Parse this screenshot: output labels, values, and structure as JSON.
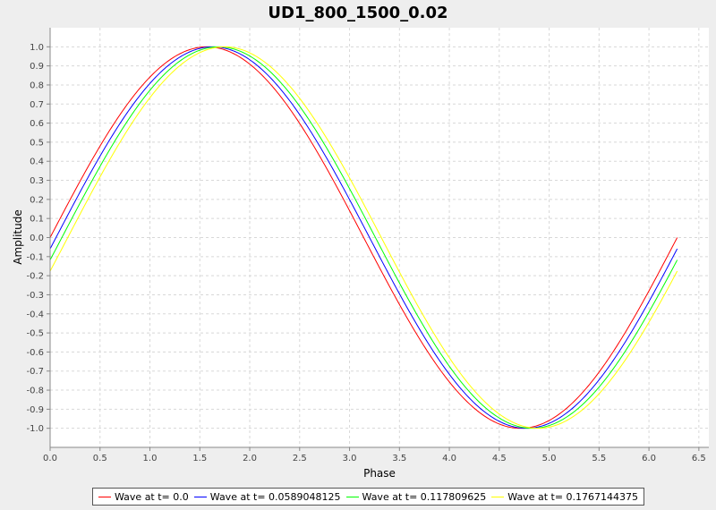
{
  "chart_data": {
    "type": "line",
    "title": "UD1_800_1500_0.02",
    "xlabel": "Phase",
    "ylabel": "Amplitude",
    "xlim": [
      0,
      6.6
    ],
    "ylim": [
      -1.1,
      1.1
    ],
    "x_ticks": [
      "0.0",
      "0.5",
      "1.0",
      "1.5",
      "2.0",
      "2.5",
      "3.0",
      "3.5",
      "4.0",
      "4.5",
      "5.0",
      "5.5",
      "6.0",
      "6.5"
    ],
    "y_ticks": [
      "1.0",
      "0.9",
      "0.8",
      "0.7",
      "0.6",
      "0.5",
      "0.4",
      "0.3",
      "0.2",
      "0.1",
      "0.0",
      "-0.1",
      "-0.2",
      "-0.3",
      "-0.4",
      "-0.5",
      "-0.6",
      "-0.7",
      "-0.8",
      "-0.9",
      "-1.0"
    ],
    "grid": true,
    "legend_position": "bottom",
    "x_range": [
      0,
      6.2832
    ],
    "function": "sin(x - offset)",
    "series": [
      {
        "name": "Wave at t= 0.0",
        "color": "#ff0000",
        "offset": 0.0
      },
      {
        "name": "Wave at t= 0.0589048125",
        "color": "#0000ff",
        "offset": 0.0589048125
      },
      {
        "name": "Wave at t= 0.117809625",
        "color": "#00ff00",
        "offset": 0.117809625
      },
      {
        "name": "Wave at t= 0.1767144375",
        "color": "#ffff00",
        "offset": 0.1767144375
      }
    ]
  }
}
